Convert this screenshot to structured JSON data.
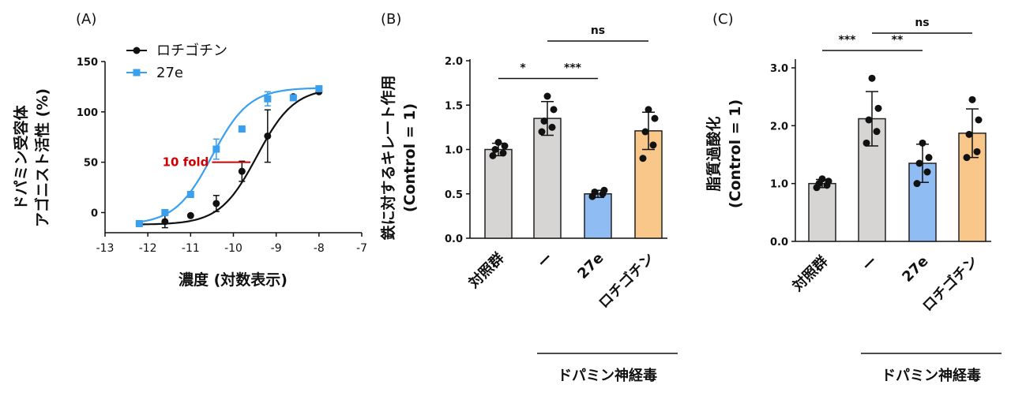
{
  "chart_data": [
    {
      "panel": "(A)",
      "type": "line",
      "xlabel": "濃度 (対数表示)",
      "ylabel_line1": "ドパミン受容体",
      "ylabel_line2": "アゴニスト活性 (%)",
      "xlim": [
        -13,
        -7
      ],
      "ylim": [
        -20,
        150
      ],
      "x_ticks": [
        -13,
        -12,
        -11,
        -10,
        -9,
        -8,
        -7
      ],
      "x_tick_labels": [
        "-13",
        "-12",
        "-11",
        "-10",
        "-9",
        "-8",
        "-7"
      ],
      "y_ticks": [
        0,
        50,
        100,
        150
      ],
      "y_tick_labels": [
        "0",
        "50",
        "100",
        "150"
      ],
      "legend_position": "top-left",
      "annotation": "10 fold",
      "annotation_y": 50,
      "annotation_x_range": [
        -10.5,
        -9.6
      ],
      "series": [
        {
          "name": "ロチゴチン",
          "color": "#111111",
          "marker": "circle",
          "x": [
            -12.2,
            -11.6,
            -11.0,
            -10.4,
            -9.8,
            -9.2,
            -8.6,
            -8.0
          ],
          "y": [
            -11,
            -9,
            -3,
            9,
            41,
            76,
            115,
            120
          ],
          "err": [
            0,
            6,
            0,
            8,
            10,
            26,
            0,
            0
          ],
          "curve_bottom": -12,
          "curve_top": 124,
          "ec50_log": -9.45,
          "hill": 1.0
        },
        {
          "name": "27e",
          "color": "#3aa0ee",
          "marker": "square",
          "x": [
            -12.2,
            -11.6,
            -11.0,
            -10.4,
            -9.8,
            -9.2,
            -8.6,
            -8.0
          ],
          "y": [
            -11,
            0,
            18,
            63,
            83,
            113,
            114,
            123
          ],
          "err": [
            0,
            0,
            0,
            10,
            0,
            7,
            0,
            0
          ],
          "curve_bottom": -12,
          "curve_top": 124,
          "ec50_log": -10.5,
          "hill": 1.0
        }
      ]
    },
    {
      "panel": "(B)",
      "type": "bar",
      "ylabel_line1": "鉄に対するキレート作用",
      "ylabel_line2": "(Control = 1)",
      "ylim": [
        0,
        2.0
      ],
      "y_ticks": [
        0,
        0.5,
        1.0,
        1.5,
        2.0
      ],
      "y_tick_labels": [
        "0.0",
        "0.5",
        "1.0",
        "1.5",
        "2.0"
      ],
      "categories": [
        "対照群",
        "ー",
        "27e",
        "ロチゴチン"
      ],
      "values": [
        1.0,
        1.35,
        0.5,
        1.21
      ],
      "errors": [
        0.07,
        0.19,
        0.04,
        0.21
      ],
      "colors": [
        "#d7d5d3",
        "#d7d5d3",
        "#8fbcf2",
        "#f9c789"
      ],
      "points": [
        [
          0.93,
          0.96,
          1.0,
          1.04,
          1.08
        ],
        [
          1.2,
          1.25,
          1.32,
          1.45,
          1.6
        ],
        [
          0.47,
          0.5,
          0.52,
          0.54
        ],
        [
          0.9,
          1.05,
          1.2,
          1.35,
          1.45
        ]
      ],
      "group_label": "ドパミン神経毒",
      "significance": [
        {
          "from": 0,
          "to": 1,
          "label": "*",
          "level": 1.8
        },
        {
          "from": 1,
          "to": 2,
          "label": "***",
          "level": 1.8
        },
        {
          "from": 1,
          "to": 3,
          "label": "ns",
          "level": 2.28
        }
      ]
    },
    {
      "panel": "(C)",
      "type": "bar",
      "ylabel_line1": "脂質過酸化",
      "ylabel_line2": "(Control = 1)",
      "ylim": [
        0,
        3.0
      ],
      "y_ticks": [
        0,
        1.0,
        2.0,
        3.0
      ],
      "y_tick_labels": [
        "0.0",
        "1.0",
        "2.0",
        "3.0"
      ],
      "categories": [
        "対照群",
        "ー",
        "27e",
        "ロチゴチン"
      ],
      "values": [
        1.0,
        2.12,
        1.35,
        1.87
      ],
      "errors": [
        0.07,
        0.47,
        0.33,
        0.42
      ],
      "colors": [
        "#d7d5d3",
        "#d7d5d3",
        "#8fbcf2",
        "#f9c789"
      ],
      "points": [
        [
          0.93,
          0.97,
          1.0,
          1.04,
          1.08
        ],
        [
          1.7,
          1.9,
          2.1,
          2.3,
          2.82
        ],
        [
          1.0,
          1.2,
          1.35,
          1.45,
          1.7
        ],
        [
          1.45,
          1.55,
          1.85,
          2.1,
          2.45
        ]
      ],
      "group_label": "ドパミン神経毒",
      "significance": [
        {
          "from": 0,
          "to": 1,
          "label": "***",
          "level": 3.3
        },
        {
          "from": 1,
          "to": 2,
          "label": "**",
          "level": 3.3
        },
        {
          "from": 1,
          "to": 3,
          "label": "ns",
          "level": 3.65
        }
      ]
    }
  ]
}
